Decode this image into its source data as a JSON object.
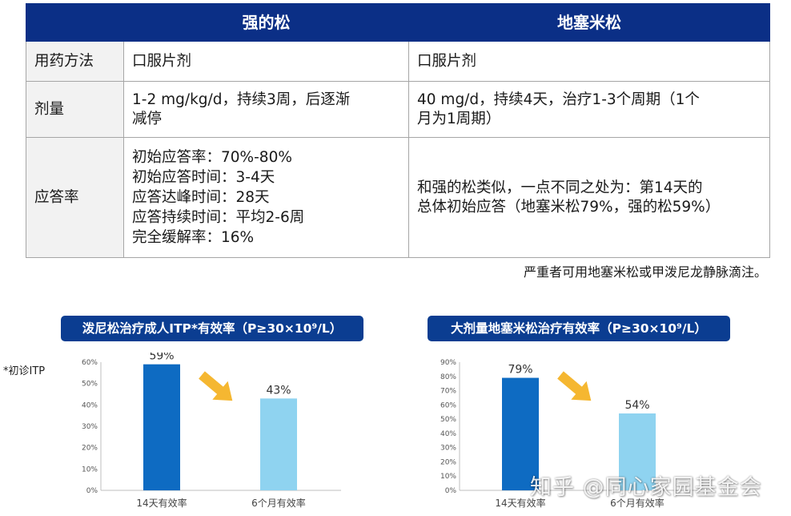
{
  "table": {
    "headers": [
      "",
      "强的松",
      "地塞米松"
    ],
    "rows": [
      {
        "label": "用药方法",
        "col1": [
          "口服片剂"
        ],
        "col2": [
          "口服片剂"
        ]
      },
      {
        "label": "剂量",
        "col1": [
          "1-2 mg/kg/d，持续3周，后逐渐",
          "减停"
        ],
        "col2": [
          "40 mg/d，持续4天，治疗1-3个周期（1个",
          "月为1周期）"
        ]
      },
      {
        "label": "应答率",
        "col1": [
          "初始应答率：70%-80%",
          "初始应答时间：3-4天",
          "应答达峰时间：28天",
          "应答持续时间：平均2-6周",
          "完全缓解率：16%"
        ],
        "col2": [
          "和强的松类似，一点不同之处为：第14天的",
          "总体初始应答（地塞米松79%，强的松59%）"
        ]
      }
    ],
    "note": "严重者可用地塞米松或甲泼尼龙静脉滴注。"
  },
  "aside_note": "*初诊ITP",
  "watermark": "知乎 @同心家园基金会",
  "colors": {
    "header": "#0b2f86",
    "bar_dark": "#0e6bc2",
    "bar_light": "#8fd3f0",
    "arrow": "#f5b731"
  },
  "chart_data": [
    {
      "type": "bar",
      "title": "泼尼松治疗成人ITP*有效率（P≥30×10⁹/L）",
      "categories": [
        "14天有效率",
        "6个月有效率"
      ],
      "values": [
        59,
        43
      ],
      "value_labels": [
        "59%",
        "43%"
      ],
      "ylim": [
        0,
        60
      ],
      "yticks": [
        "0%",
        "10%",
        "20%",
        "30%",
        "40%",
        "50%",
        "60%"
      ],
      "grid": false
    },
    {
      "type": "bar",
      "title": "大剂量地塞米松治疗有效率（P≥30×10⁹/L）",
      "categories": [
        "14天有效率",
        "6个月有效率"
      ],
      "values": [
        79,
        54
      ],
      "value_labels": [
        "79%",
        "54%"
      ],
      "ylim": [
        0,
        90
      ],
      "yticks": [
        "0%",
        "10%",
        "20%",
        "30%",
        "40%",
        "50%",
        "60%",
        "70%",
        "80%",
        "90%"
      ],
      "grid": false
    }
  ]
}
